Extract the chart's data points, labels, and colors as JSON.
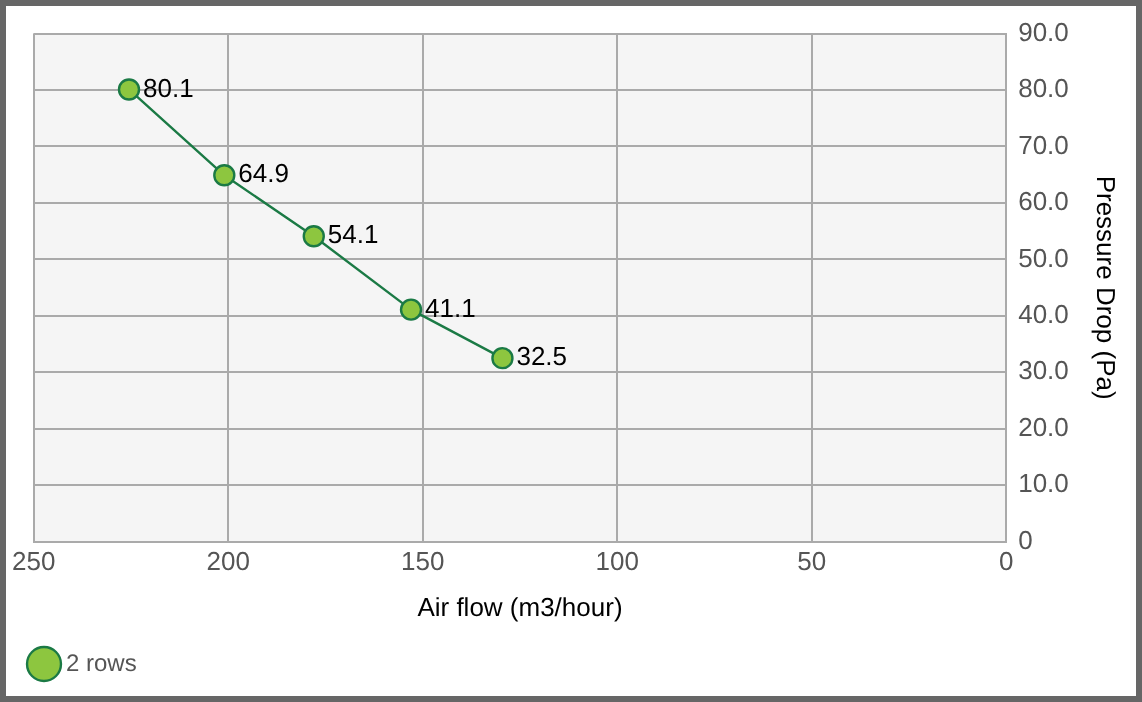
{
  "chart_data": {
    "type": "line",
    "xlabel": "Air flow (m3/hour)",
    "ylabel": "Pressure Drop (Pa)",
    "x": [
      225.5,
      201,
      178,
      153,
      129.5
    ],
    "series": [
      {
        "name": "2 rows",
        "color": "#1b7a45",
        "values": [
          80.1,
          64.9,
          54.1,
          41.1,
          32.5
        ]
      }
    ],
    "xlim": [
      250,
      0
    ],
    "xticks": [
      250,
      200,
      150,
      100,
      50,
      0
    ],
    "ylim": [
      0,
      90
    ],
    "yticks": [
      0,
      {
        "value": 10,
        "label": "10.0"
      },
      {
        "value": 20,
        "label": "20.0"
      },
      {
        "value": 30,
        "label": "30.0"
      },
      {
        "value": 40,
        "label": "40.0"
      },
      {
        "value": 50,
        "label": "50.0"
      },
      {
        "value": 60,
        "label": "60.0"
      },
      {
        "value": 70,
        "label": "70.0"
      },
      {
        "value": 80,
        "label": "80.0"
      },
      {
        "value": 90,
        "label": "90.0"
      }
    ],
    "grid": true,
    "legend": "bottom left",
    "marker": "circle",
    "line_style": "solid",
    "data_labels": true
  }
}
